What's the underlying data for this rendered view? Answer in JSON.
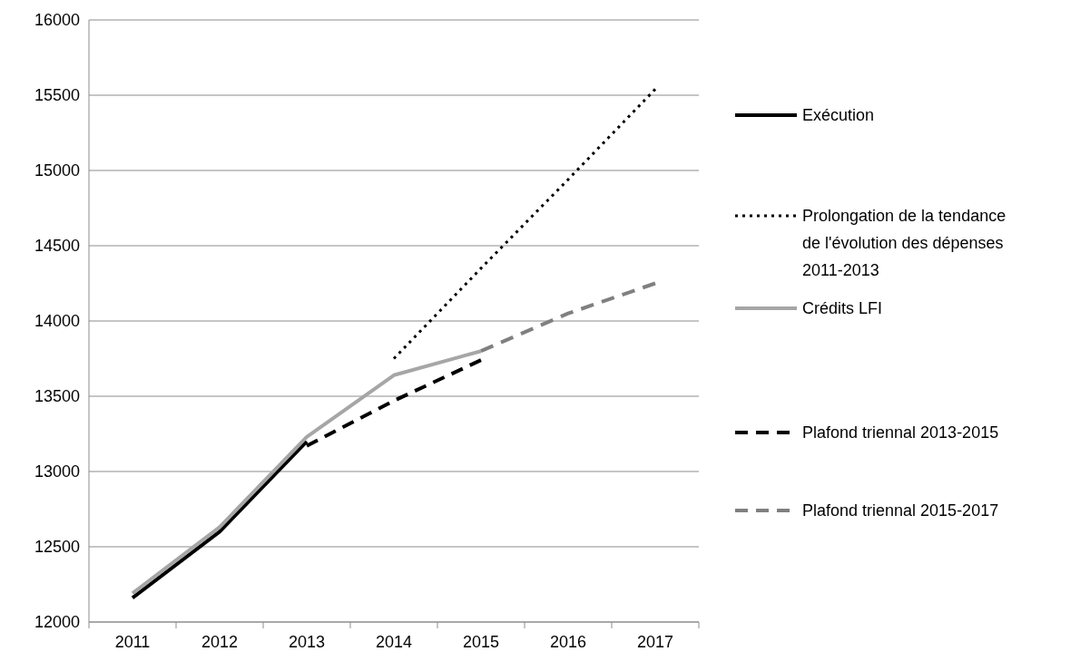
{
  "chart_data": {
    "type": "line",
    "categories": [
      "2011",
      "2012",
      "2013",
      "2014",
      "2015",
      "2016",
      "2017"
    ],
    "series": [
      {
        "name": "Exécution",
        "color": "#000000",
        "line_style": "solid",
        "values": [
          12160,
          12600,
          13200,
          null,
          null,
          null,
          null
        ]
      },
      {
        "name": "Prolongation de la tendance de l'évolution des dépenses 2011-2013",
        "color": "#000000",
        "line_style": "dotted",
        "values": [
          null,
          null,
          null,
          13750,
          14350,
          14940,
          15540
        ]
      },
      {
        "name": "Crédits LFI",
        "color": "#a6a6a6",
        "line_style": "solid",
        "values": [
          12190,
          12630,
          13230,
          13640,
          13800,
          null,
          null
        ]
      },
      {
        "name": "Plafond triennal 2013-2015",
        "color": "#000000",
        "line_style": "dashed",
        "values": [
          null,
          null,
          13170,
          13470,
          13740,
          null,
          null
        ]
      },
      {
        "name": "Plafond triennal 2015-2017",
        "color": "#808080",
        "line_style": "dashed",
        "values": [
          null,
          null,
          null,
          null,
          13800,
          14050,
          14250
        ]
      }
    ],
    "ylim": [
      12000,
      16000
    ],
    "yticks": [
      12000,
      12500,
      13000,
      13500,
      14000,
      14500,
      15000,
      15500,
      16000
    ],
    "grid": "y",
    "legend": "right",
    "marker": "none"
  }
}
